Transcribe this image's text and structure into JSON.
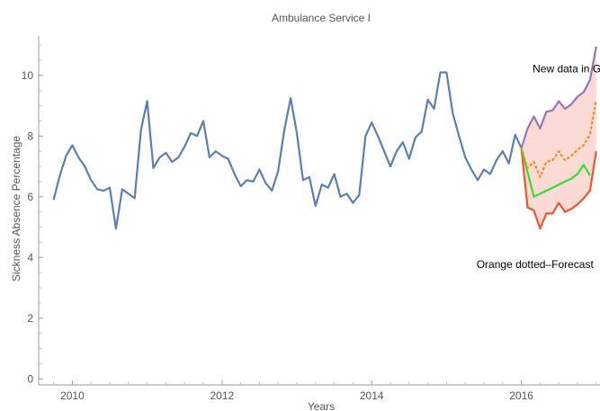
{
  "chart_data": {
    "type": "line",
    "title": "Ambulance Service I",
    "xlabel": "Years",
    "ylabel": "Sickness Absence Percentage",
    "xlim": [
      2009.55,
      2017.05
    ],
    "ylim": [
      -0.2,
      11.3
    ],
    "x_ticks": [
      2010,
      2012,
      2014,
      2016
    ],
    "y_ticks": [
      0,
      2,
      4,
      6,
      8,
      10
    ],
    "grid": false,
    "colors": {
      "history": "#5b7fb5",
      "new_data": "#33dd33",
      "forecast": "#f08c1e",
      "upper": "#9377bd",
      "lower": "#ee5530",
      "band": "#f8d3cc"
    },
    "annotations": [
      {
        "id": "new-data",
        "text": "New data in Green",
        "x": 2016.15,
        "y": 10.1
      },
      {
        "id": "forecast",
        "text": "Orange dotted–Forecast",
        "x": 2015.4,
        "y": 3.65
      }
    ],
    "series": [
      {
        "id": "history",
        "points": [
          [
            2009.75,
            5.9
          ],
          [
            2009.833,
            6.7
          ],
          [
            2009.917,
            7.35
          ],
          [
            2010.0,
            7.7
          ],
          [
            2010.083,
            7.3
          ],
          [
            2010.167,
            7.0
          ],
          [
            2010.25,
            6.55
          ],
          [
            2010.333,
            6.25
          ],
          [
            2010.417,
            6.2
          ],
          [
            2010.5,
            6.3
          ],
          [
            2010.583,
            4.95
          ],
          [
            2010.667,
            6.25
          ],
          [
            2010.75,
            6.1
          ],
          [
            2010.833,
            5.95
          ],
          [
            2010.917,
            8.2
          ],
          [
            2011.0,
            9.15
          ],
          [
            2011.083,
            6.95
          ],
          [
            2011.167,
            7.3
          ],
          [
            2011.25,
            7.45
          ],
          [
            2011.333,
            7.15
          ],
          [
            2011.417,
            7.3
          ],
          [
            2011.5,
            7.65
          ],
          [
            2011.583,
            8.1
          ],
          [
            2011.667,
            8.0
          ],
          [
            2011.75,
            8.5
          ],
          [
            2011.833,
            7.3
          ],
          [
            2011.917,
            7.5
          ],
          [
            2012.0,
            7.35
          ],
          [
            2012.083,
            7.25
          ],
          [
            2012.167,
            6.75
          ],
          [
            2012.25,
            6.35
          ],
          [
            2012.333,
            6.55
          ],
          [
            2012.417,
            6.5
          ],
          [
            2012.5,
            6.9
          ],
          [
            2012.583,
            6.45
          ],
          [
            2012.667,
            6.2
          ],
          [
            2012.75,
            6.85
          ],
          [
            2012.833,
            8.2
          ],
          [
            2012.917,
            9.25
          ],
          [
            2013.0,
            8.1
          ],
          [
            2013.083,
            6.55
          ],
          [
            2013.167,
            6.65
          ],
          [
            2013.25,
            5.7
          ],
          [
            2013.333,
            6.4
          ],
          [
            2013.417,
            6.3
          ],
          [
            2013.5,
            6.75
          ],
          [
            2013.583,
            6.0
          ],
          [
            2013.667,
            6.1
          ],
          [
            2013.75,
            5.8
          ],
          [
            2013.833,
            6.05
          ],
          [
            2013.917,
            8.0
          ],
          [
            2014.0,
            8.45
          ],
          [
            2014.083,
            8.0
          ],
          [
            2014.167,
            7.5
          ],
          [
            2014.25,
            7.0
          ],
          [
            2014.333,
            7.5
          ],
          [
            2014.417,
            7.8
          ],
          [
            2014.5,
            7.25
          ],
          [
            2014.583,
            7.95
          ],
          [
            2014.667,
            8.15
          ],
          [
            2014.75,
            9.2
          ],
          [
            2014.833,
            8.9
          ],
          [
            2014.917,
            10.1
          ],
          [
            2015.0,
            10.1
          ],
          [
            2015.083,
            8.75
          ],
          [
            2015.167,
            8.0
          ],
          [
            2015.25,
            7.3
          ],
          [
            2015.333,
            6.9
          ],
          [
            2015.417,
            6.55
          ],
          [
            2015.5,
            6.9
          ],
          [
            2015.583,
            6.75
          ],
          [
            2015.667,
            7.2
          ],
          [
            2015.75,
            7.5
          ],
          [
            2015.833,
            7.1
          ],
          [
            2015.917,
            8.05
          ],
          [
            2016.0,
            7.6
          ]
        ]
      },
      {
        "id": "new-data",
        "points": [
          [
            2016.0,
            7.6
          ],
          [
            2016.167,
            6.0
          ],
          [
            2016.25,
            6.1
          ],
          [
            2016.333,
            6.2
          ],
          [
            2016.417,
            6.3
          ],
          [
            2016.5,
            6.4
          ],
          [
            2016.583,
            6.5
          ],
          [
            2016.667,
            6.6
          ],
          [
            2016.75,
            6.75
          ],
          [
            2016.833,
            7.05
          ],
          [
            2016.917,
            6.7
          ]
        ]
      },
      {
        "id": "forecast",
        "points": [
          [
            2016.0,
            7.6
          ],
          [
            2016.083,
            6.95
          ],
          [
            2016.167,
            7.15
          ],
          [
            2016.25,
            6.65
          ],
          [
            2016.333,
            7.15
          ],
          [
            2016.417,
            7.2
          ],
          [
            2016.5,
            7.5
          ],
          [
            2016.583,
            7.2
          ],
          [
            2016.667,
            7.35
          ],
          [
            2016.75,
            7.55
          ],
          [
            2016.833,
            7.7
          ],
          [
            2016.917,
            8.05
          ],
          [
            2017.0,
            9.2
          ]
        ]
      },
      {
        "id": "upper",
        "points": [
          [
            2016.0,
            7.6
          ],
          [
            2016.083,
            8.25
          ],
          [
            2016.167,
            8.65
          ],
          [
            2016.25,
            8.25
          ],
          [
            2016.333,
            8.8
          ],
          [
            2016.417,
            8.85
          ],
          [
            2016.5,
            9.15
          ],
          [
            2016.583,
            8.9
          ],
          [
            2016.667,
            9.05
          ],
          [
            2016.75,
            9.3
          ],
          [
            2016.833,
            9.45
          ],
          [
            2016.917,
            9.85
          ],
          [
            2017.0,
            10.95
          ]
        ]
      },
      {
        "id": "lower",
        "points": [
          [
            2016.0,
            7.6
          ],
          [
            2016.083,
            5.65
          ],
          [
            2016.167,
            5.55
          ],
          [
            2016.25,
            4.95
          ],
          [
            2016.333,
            5.45
          ],
          [
            2016.417,
            5.45
          ],
          [
            2016.5,
            5.8
          ],
          [
            2016.583,
            5.5
          ],
          [
            2016.667,
            5.6
          ],
          [
            2016.75,
            5.75
          ],
          [
            2016.833,
            5.95
          ],
          [
            2016.917,
            6.2
          ],
          [
            2017.0,
            7.5
          ]
        ]
      }
    ]
  }
}
